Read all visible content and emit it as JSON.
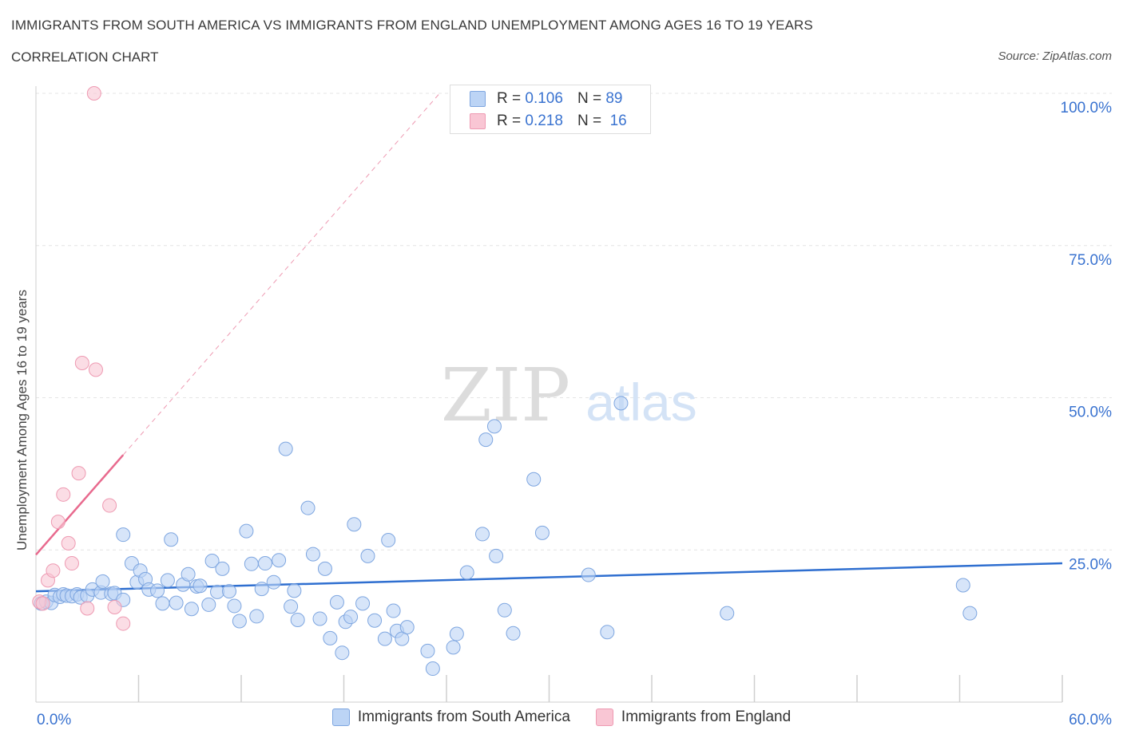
{
  "title": "IMMIGRANTS FROM SOUTH AMERICA VS IMMIGRANTS FROM ENGLAND UNEMPLOYMENT AMONG AGES 16 TO 19 YEARS",
  "subtitle": "CORRELATION CHART",
  "source": "Source: ZipAtlas.com",
  "watermark": {
    "zip": "ZIP",
    "atlas": "atlas"
  },
  "colors": {
    "blue_fill": "#bcd4f5",
    "blue_stroke": "#7ea6e0",
    "blue_line": "#2f6fd0",
    "pink_fill": "#f9c6d4",
    "pink_stroke": "#ee9ab2",
    "pink_line": "#e86a8e",
    "tick_label": "#3a73d0",
    "grid": "#e4e4e4"
  },
  "stats": [
    {
      "r_label": "R =",
      "r_value": "0.106",
      "n_label": "N =",
      "n_value": "89",
      "color": "#bcd4f5"
    },
    {
      "r_label": "R =",
      "r_value": "0.218",
      "n_label": "N =",
      "n_value": "16",
      "color": "#f9c6d4"
    }
  ],
  "chart_data": {
    "type": "scatter",
    "title": "IMMIGRANTS FROM SOUTH AMERICA VS IMMIGRANTS FROM ENGLAND UNEMPLOYMENT AMONG AGES 16 TO 19 YEARS",
    "xlabel": "",
    "ylabel": "Unemployment Among Ages 16 to 19 years",
    "xlim": [
      0,
      60
    ],
    "ylim": [
      0,
      100
    ],
    "x_tick_labels": [
      "0.0%",
      "60.0%"
    ],
    "y_ticks": [
      25,
      50,
      75,
      100
    ],
    "y_tick_labels": [
      "25.0%",
      "50.0%",
      "75.0%",
      "100.0%"
    ],
    "legend_position": "bottom-center",
    "series": [
      {
        "name": "Immigrants from South America",
        "color": "#bcd4f5",
        "trend": {
          "x": [
            0,
            60
          ],
          "y": [
            18.2,
            22.8
          ]
        },
        "points": [
          [
            0.3,
            16.2
          ],
          [
            0.6,
            16.5
          ],
          [
            0.9,
            16.3
          ],
          [
            1.1,
            17.6
          ],
          [
            1.4,
            17.3
          ],
          [
            1.6,
            17.7
          ],
          [
            1.8,
            17.5
          ],
          [
            2.1,
            17.4
          ],
          [
            2.4,
            17.7
          ],
          [
            2.6,
            17.2
          ],
          [
            3.0,
            17.5
          ],
          [
            3.3,
            18.5
          ],
          [
            3.8,
            18.0
          ],
          [
            3.9,
            19.8
          ],
          [
            4.4,
            17.8
          ],
          [
            4.6,
            17.9
          ],
          [
            5.1,
            16.8
          ],
          [
            5.1,
            27.5
          ],
          [
            5.6,
            22.8
          ],
          [
            5.9,
            19.7
          ],
          [
            6.1,
            21.6
          ],
          [
            6.4,
            20.2
          ],
          [
            6.6,
            18.5
          ],
          [
            7.1,
            18.3
          ],
          [
            7.4,
            16.2
          ],
          [
            7.7,
            20.0
          ],
          [
            7.9,
            26.7
          ],
          [
            8.2,
            16.3
          ],
          [
            8.6,
            19.3
          ],
          [
            8.9,
            21.0
          ],
          [
            9.1,
            15.3
          ],
          [
            9.4,
            19.0
          ],
          [
            9.6,
            19.1
          ],
          [
            10.1,
            16.0
          ],
          [
            10.3,
            23.2
          ],
          [
            10.6,
            18.1
          ],
          [
            10.9,
            21.9
          ],
          [
            11.3,
            18.2
          ],
          [
            11.6,
            15.8
          ],
          [
            11.9,
            13.3
          ],
          [
            12.3,
            28.1
          ],
          [
            12.6,
            22.7
          ],
          [
            12.9,
            14.1
          ],
          [
            13.2,
            18.6
          ],
          [
            13.4,
            22.8
          ],
          [
            13.9,
            19.7
          ],
          [
            14.2,
            23.3
          ],
          [
            14.6,
            41.6
          ],
          [
            14.9,
            15.7
          ],
          [
            15.1,
            18.3
          ],
          [
            15.3,
            13.5
          ],
          [
            15.9,
            31.9
          ],
          [
            16.2,
            24.3
          ],
          [
            16.6,
            13.7
          ],
          [
            16.9,
            21.9
          ],
          [
            17.2,
            10.5
          ],
          [
            17.6,
            16.4
          ],
          [
            17.9,
            8.1
          ],
          [
            18.1,
            13.2
          ],
          [
            18.4,
            14.0
          ],
          [
            18.6,
            29.2
          ],
          [
            19.1,
            16.2
          ],
          [
            19.4,
            24.0
          ],
          [
            19.8,
            13.4
          ],
          [
            20.4,
            10.4
          ],
          [
            20.6,
            26.6
          ],
          [
            20.9,
            15.0
          ],
          [
            21.1,
            11.7
          ],
          [
            21.4,
            10.4
          ],
          [
            21.7,
            12.3
          ],
          [
            22.9,
            8.4
          ],
          [
            23.2,
            5.5
          ],
          [
            24.4,
            9.0
          ],
          [
            24.6,
            11.2
          ],
          [
            25.2,
            21.3
          ],
          [
            26.1,
            27.6
          ],
          [
            26.3,
            43.1
          ],
          [
            26.8,
            45.3
          ],
          [
            26.9,
            24.0
          ],
          [
            27.4,
            15.1
          ],
          [
            27.9,
            11.3
          ],
          [
            29.1,
            36.6
          ],
          [
            29.6,
            27.8
          ],
          [
            32.3,
            20.9
          ],
          [
            33.4,
            11.5
          ],
          [
            34.2,
            49.1
          ],
          [
            40.4,
            14.6
          ],
          [
            54.2,
            19.2
          ],
          [
            54.6,
            14.6
          ]
        ]
      },
      {
        "name": "Immigrants from England",
        "color": "#f9c6d4",
        "trend": {
          "x": [
            0,
            5.1
          ],
          "y": [
            24.2,
            40.6
          ]
        },
        "trend_extension": {
          "x": [
            5.1,
            23.6
          ],
          "y": [
            40.6,
            100
          ]
        },
        "points": [
          [
            0.2,
            16.5
          ],
          [
            0.4,
            16.2
          ],
          [
            0.7,
            20.0
          ],
          [
            1.0,
            21.6
          ],
          [
            1.3,
            29.6
          ],
          [
            1.6,
            34.1
          ],
          [
            1.9,
            26.1
          ],
          [
            2.1,
            22.8
          ],
          [
            2.5,
            37.6
          ],
          [
            2.7,
            55.7
          ],
          [
            3.0,
            15.4
          ],
          [
            3.4,
            100.0
          ],
          [
            3.5,
            54.6
          ],
          [
            4.3,
            32.3
          ],
          [
            4.6,
            15.6
          ],
          [
            5.1,
            12.9
          ]
        ]
      }
    ]
  },
  "legend": {
    "south_america": "Immigrants from South America",
    "england": "Immigrants from England"
  }
}
